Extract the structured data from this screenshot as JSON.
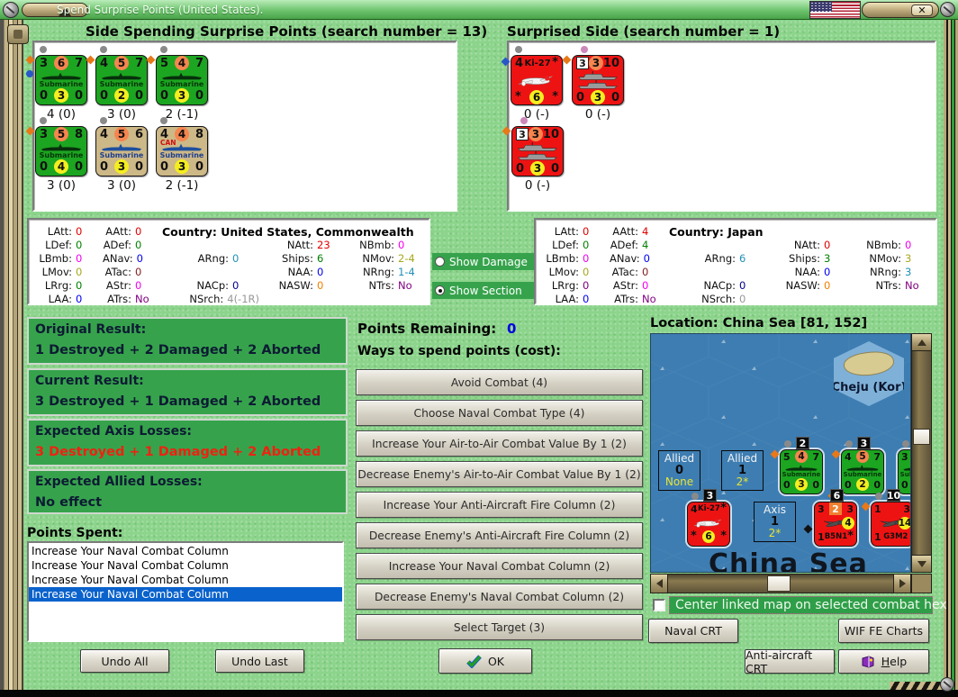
{
  "window": {
    "title": "Spend Surprise Points (United States).",
    "close_glyph": "✕"
  },
  "spending_side": {
    "title": "Side Spending Surprise Points (search number = 13)",
    "counters": [
      {
        "kind": "sub",
        "bg": "green",
        "top": [
          "3",
          "6",
          "7"
        ],
        "bottom": [
          "0",
          "3",
          "0"
        ],
        "unit_name": "Submarine",
        "label": "4 (0)",
        "markers": [
          "gray-above",
          "orange-left",
          "blue-left2"
        ]
      },
      {
        "kind": "sub",
        "bg": "green",
        "top": [
          "4",
          "5",
          "7"
        ],
        "bottom": [
          "0",
          "2",
          "0"
        ],
        "unit_name": "Submarine",
        "label": "3 (0)",
        "markers": [
          "gray-above",
          "orange-left"
        ]
      },
      {
        "kind": "sub",
        "bg": "green",
        "top": [
          "5",
          "4",
          "7"
        ],
        "bottom": [
          "0",
          "3",
          "0"
        ],
        "unit_name": "Submarine",
        "label": "2 (-1)",
        "markers": [
          "gray-above",
          "orange-left"
        ]
      },
      {
        "kind": "sub",
        "bg": "green",
        "top": [
          "3",
          "5",
          "8"
        ],
        "bottom": [
          "0",
          "4",
          "0"
        ],
        "unit_name": "Submarine",
        "label": "3 (0)",
        "markers": [
          "gray-above",
          "orange-left"
        ]
      },
      {
        "kind": "sub",
        "bg": "tan",
        "top": [
          "4",
          "5",
          "6"
        ],
        "bottom": [
          "0",
          "3",
          "0"
        ],
        "unit_name": "Submarine",
        "label": "3 (0)",
        "markers": [
          "gray-above"
        ]
      },
      {
        "kind": "sub",
        "bg": "tan",
        "top": [
          "4",
          "4",
          "8"
        ],
        "bottom": [
          "0",
          "3",
          "0"
        ],
        "unit_name": "Submarine",
        "extra": "CAN",
        "label": "2 (-1)",
        "markers": [
          "gray-above"
        ]
      }
    ],
    "stats": {
      "country": "Country: United States, Commonwealth",
      "cells": [
        {
          "r": 0,
          "c": 0,
          "l": "LAtt:",
          "v": "0",
          "cl": "#e00000"
        },
        {
          "r": 0,
          "c": 1,
          "l": "AAtt:",
          "v": "0",
          "cl": "#e00000"
        },
        {
          "r": 1,
          "c": 0,
          "l": "LDef:",
          "v": "0",
          "cl": "#008000"
        },
        {
          "r": 1,
          "c": 1,
          "l": "ADef:",
          "v": "0",
          "cl": "#008000"
        },
        {
          "r": 1,
          "c": 3,
          "l": "NAtt:",
          "v": "23",
          "cl": "#e00000"
        },
        {
          "r": 1,
          "c": 4,
          "l": "NBmb:",
          "v": "0",
          "cl": "#f000f0"
        },
        {
          "r": 2,
          "c": 0,
          "l": "LBmb:",
          "v": "0",
          "cl": "#f000f0"
        },
        {
          "r": 2,
          "c": 1,
          "l": "ANav:",
          "v": "0",
          "cl": "#0000f0"
        },
        {
          "r": 2,
          "c": 2,
          "l": "ARng:",
          "v": "0",
          "cl": "#2090b8"
        },
        {
          "r": 2,
          "c": 3,
          "l": "Ships:",
          "v": "6",
          "cl": "#008000"
        },
        {
          "r": 2,
          "c": 4,
          "l": "NMov:",
          "v": "2-4",
          "cl": "#a8a820"
        },
        {
          "r": 3,
          "c": 0,
          "l": "LMov:",
          "v": "0",
          "cl": "#a8a820"
        },
        {
          "r": 3,
          "c": 1,
          "l": "ATac:",
          "v": "0",
          "cl": "#802020"
        },
        {
          "r": 3,
          "c": 3,
          "l": "NAA:",
          "v": "0",
          "cl": "#0000f0"
        },
        {
          "r": 3,
          "c": 4,
          "l": "NRng:",
          "v": "1-4",
          "cl": "#2090b8"
        },
        {
          "r": 4,
          "c": 0,
          "l": "LRrg:",
          "v": "0",
          "cl": "#008000"
        },
        {
          "r": 4,
          "c": 1,
          "l": "AStr:",
          "v": "0",
          "cl": "#f000f0"
        },
        {
          "r": 4,
          "c": 2,
          "l": "NACp:",
          "v": "0",
          "cl": "#000090"
        },
        {
          "r": 4,
          "c": 3,
          "l": "NASW:",
          "v": "0",
          "cl": "#f08000"
        },
        {
          "r": 4,
          "c": 4,
          "l": "NTrs:",
          "v": "No",
          "cl": "#800080"
        },
        {
          "r": 5,
          "c": 0,
          "l": "LAA:",
          "v": "0",
          "cl": "#0000f0"
        },
        {
          "r": 5,
          "c": 1,
          "l": "ATrs:",
          "v": "No",
          "cl": "#800080"
        },
        {
          "r": 5,
          "c": 2,
          "l": "NSrch:",
          "v": "4(-1R)",
          "cl": "#989898"
        }
      ]
    },
    "results": [
      {
        "heading": "Original Result:",
        "text": "1 Destroyed + 2 Damaged + 2 Aborted",
        "color": "#0d1b33"
      },
      {
        "heading": "Current Result:",
        "text": "3 Destroyed + 1 Damaged + 2 Aborted",
        "color": "#0d1b33"
      },
      {
        "heading": "Expected Axis Losses:",
        "text": "3 Destroyed + 1 Damaged + 2 Aborted",
        "color": "#ee2211"
      },
      {
        "heading": "Expected Allied Losses:",
        "text": "No effect",
        "color": "#0d1b33"
      }
    ],
    "points_spent_label": "Points Spent:",
    "points_spent": [
      "Increase Your Naval Combat Column",
      "Increase Your Naval Combat Column",
      "Increase Your Naval Combat Column",
      "Increase Your Naval Combat Column"
    ],
    "selected_index": 3,
    "undo_all": "Undo All",
    "undo_last": "Undo Last"
  },
  "surprised_side": {
    "title": "Surprised Side (search number = 1)",
    "counters": [
      {
        "kind": "air",
        "bg": "red",
        "top_left": "4",
        "unit_name": "Ki-27",
        "air_value": "6",
        "label": "0 (-)",
        "markers": [
          "gray-above",
          "blue-left"
        ]
      },
      {
        "kind": "ship",
        "bg": "red",
        "top": [
          "3",
          "3",
          "10"
        ],
        "bottom": [
          "0",
          "3",
          "0"
        ],
        "label": "0 (-)",
        "markers": [
          "pink-above",
          "orange-left"
        ]
      },
      {
        "kind": "ship",
        "bg": "red",
        "top": [
          "3",
          "3",
          "10"
        ],
        "bottom": [
          "0",
          "3",
          "0"
        ],
        "label": "0 (-)",
        "markers": [
          "pink-above",
          "orange-left"
        ]
      }
    ],
    "stats": {
      "country": "Country: Japan",
      "cells": [
        {
          "r": 0,
          "c": 0,
          "l": "LAtt:",
          "v": "0",
          "cl": "#e00000"
        },
        {
          "r": 0,
          "c": 1,
          "l": "AAtt:",
          "v": "4",
          "cl": "#e00000"
        },
        {
          "r": 1,
          "c": 0,
          "l": "LDef:",
          "v": "0",
          "cl": "#008000"
        },
        {
          "r": 1,
          "c": 1,
          "l": "ADef:",
          "v": "4",
          "cl": "#008000"
        },
        {
          "r": 1,
          "c": 3,
          "l": "NAtt:",
          "v": "0",
          "cl": "#e00000"
        },
        {
          "r": 1,
          "c": 4,
          "l": "NBmb:",
          "v": "0",
          "cl": "#f000f0"
        },
        {
          "r": 2,
          "c": 0,
          "l": "LBmb:",
          "v": "0",
          "cl": "#f000f0"
        },
        {
          "r": 2,
          "c": 1,
          "l": "ANav:",
          "v": "0",
          "cl": "#0000f0"
        },
        {
          "r": 2,
          "c": 2,
          "l": "ARng:",
          "v": "6",
          "cl": "#2090b8"
        },
        {
          "r": 2,
          "c": 3,
          "l": "Ships:",
          "v": "3",
          "cl": "#008000"
        },
        {
          "r": 2,
          "c": 4,
          "l": "NMov:",
          "v": "3",
          "cl": "#a8a820"
        },
        {
          "r": 3,
          "c": 0,
          "l": "LMov:",
          "v": "0",
          "cl": "#a8a820"
        },
        {
          "r": 3,
          "c": 1,
          "l": "ATac:",
          "v": "0",
          "cl": "#802020"
        },
        {
          "r": 3,
          "c": 3,
          "l": "NAA:",
          "v": "0",
          "cl": "#0000f0"
        },
        {
          "r": 3,
          "c": 4,
          "l": "NRng:",
          "v": "3",
          "cl": "#2090b8"
        },
        {
          "r": 4,
          "c": 0,
          "l": "LRrg:",
          "v": "0",
          "cl": "#800080"
        },
        {
          "r": 4,
          "c": 1,
          "l": "AStr:",
          "v": "0",
          "cl": "#f000f0"
        },
        {
          "r": 4,
          "c": 2,
          "l": "NACp:",
          "v": "0",
          "cl": "#000090"
        },
        {
          "r": 4,
          "c": 3,
          "l": "NASW:",
          "v": "0",
          "cl": "#f08000"
        },
        {
          "r": 4,
          "c": 4,
          "l": "NTrs:",
          "v": "No",
          "cl": "#800080"
        },
        {
          "r": 5,
          "c": 0,
          "l": "LAA:",
          "v": "0",
          "cl": "#0000f0"
        },
        {
          "r": 5,
          "c": 1,
          "l": "ATrs:",
          "v": "No",
          "cl": "#800080"
        },
        {
          "r": 5,
          "c": 2,
          "l": "NSrch:",
          "v": "0",
          "cl": "#989898"
        }
      ]
    }
  },
  "view_controls": {
    "show_damage": "Show Damage",
    "show_section": "Show Section",
    "selected": "show_section"
  },
  "spend": {
    "points_remaining_label": "Points Remaining:",
    "points_remaining_value": "0",
    "ways_label": "Ways to spend points (cost):",
    "buttons": [
      "Avoid Combat (4)",
      "Choose Naval Combat Type (4)",
      "Increase Your Air-to-Air Combat Value By 1 (2)",
      "Decrease Enemy's Air-to-Air Combat Value By 1 (2)",
      "Increase Your Anti-Aircraft Fire Column (2)",
      "Decrease Enemy's Anti-Aircraft Fire Column (2)",
      "Increase Your Naval Combat Column (2)",
      "Decrease Enemy's Naval Combat Column (2)",
      "Select Target (3)"
    ]
  },
  "map": {
    "location_label": "Location: China Sea [81, 152]",
    "island_label": "Cheju (Kor)",
    "sea_label": "China Sea",
    "boxes": [
      {
        "title": "Allied",
        "value": "0",
        "sub": "None"
      },
      {
        "title": "Allied",
        "value": "1",
        "sub": "2*"
      },
      {
        "title": "Axis",
        "value": "1",
        "sub": "2*"
      }
    ],
    "counters": [
      {
        "kind": "sub",
        "bg": "green",
        "badge": "2",
        "top": [
          "5",
          "4",
          "7"
        ],
        "bottom": [
          "0",
          "3",
          "0"
        ],
        "unit_name": "Submarine",
        "markers": [
          "gray-above",
          "orange-left"
        ]
      },
      {
        "kind": "sub",
        "bg": "green",
        "badge": "3",
        "top": [
          "4",
          "5",
          "7"
        ],
        "bottom": [
          "0",
          "2",
          "0"
        ],
        "unit_name": "Submarine",
        "markers": [
          "gray-above",
          "orange-left"
        ]
      },
      {
        "kind": "sub",
        "bg": "green",
        "badge": "",
        "top": [
          "3",
          "",
          ""
        ],
        "bottom": [
          "0",
          "",
          ""
        ],
        "unit_name": "Submarine",
        "markers": [
          "gray-above",
          "orange-above"
        ]
      },
      {
        "kind": "air",
        "bg": "red",
        "badge": "3",
        "top_left": "4",
        "unit_name": "Ki-27",
        "air_value": "6",
        "markers": [
          "gray-above"
        ]
      },
      {
        "kind": "air2",
        "bg": "red",
        "badge": "6",
        "top": [
          "3",
          "2",
          "3"
        ],
        "air_value": "4",
        "bottom_left": "1",
        "unit_name": "B5N1",
        "br": "*",
        "markers": [
          "orange-above",
          "black-left"
        ]
      },
      {
        "kind": "air2",
        "bg": "red",
        "badge": "10",
        "top": [
          "1",
          "",
          "3"
        ],
        "air_value": "14",
        "bottom_left": "1",
        "unit_name": "G3M2",
        "br": "",
        "markers": [
          "gray-above",
          "orange-left"
        ]
      }
    ],
    "checkbox_label": "Center linked map on selected combat hex",
    "checkbox_checked": false
  },
  "footer": {
    "ok": "OK",
    "naval_crt": "Naval CRT",
    "wif_fe_charts": "WIF FE Charts",
    "anti_aircraft_crt": "Anti-aircraft CRT",
    "help_u": "H",
    "help_rest": "elp"
  }
}
